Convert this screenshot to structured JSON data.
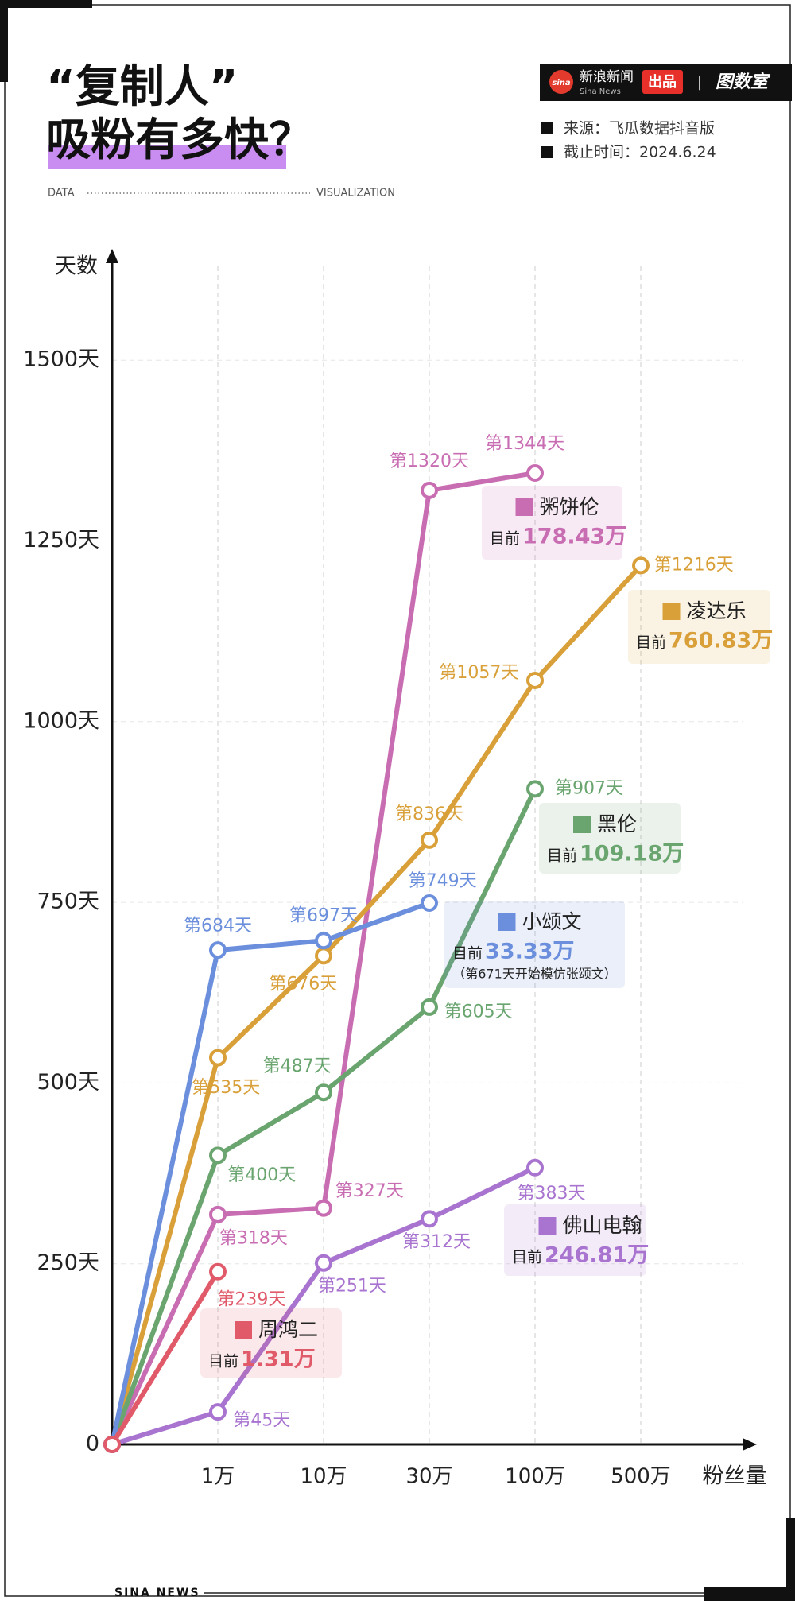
{
  "header": {
    "title_line1": "“复制人”",
    "title_line2": "吸粉有多快？",
    "tag_left": "DATA",
    "tag_right": "VISUALIZATION",
    "brand": "新浪新闻",
    "brand_en": "Sina News",
    "brand_logo": "sina",
    "produced": "出品",
    "separator": "|",
    "studio": "图数室",
    "source": "来源：飞瓜数据抖音版",
    "cutoff": "截止时间：2024.6.24"
  },
  "footer": {
    "text": "SINA NEWS"
  },
  "chart_data": {
    "type": "line",
    "y_label": "天数",
    "x_label": "粉丝量",
    "current_prefix": "目前",
    "categories": [
      null,
      "1万",
      "10万",
      "30万",
      "100万",
      "500万"
    ],
    "ylim": [
      0,
      1630
    ],
    "yticks": [
      0,
      {
        "value": 250,
        "label": "250天"
      },
      {
        "value": 500,
        "label": "500天"
      },
      {
        "value": 750,
        "label": "750天"
      },
      {
        "value": 1000,
        "label": "1000天"
      },
      {
        "value": 1250,
        "label": "1250天"
      },
      {
        "value": 1500,
        "label": "1500天"
      }
    ],
    "grid": true,
    "series": [
      {
        "name": "粥饼伦",
        "color": "#c96db3",
        "values": [
          0,
          318,
          327,
          1320,
          1344,
          null
        ],
        "value_labels": [
          null,
          "第318天",
          "第327天",
          "第1320天",
          "第1344天",
          null
        ],
        "current": "178.43万"
      },
      {
        "name": "凌达乐",
        "color": "#d9a03a",
        "values": [
          0,
          535,
          676,
          836,
          1057,
          1216
        ],
        "value_labels": [
          null,
          "第535天",
          "第676天",
          "第836天",
          "第1057天",
          "第1216天"
        ],
        "current": "760.83万"
      },
      {
        "name": "黑伦",
        "color": "#6aa56f",
        "values": [
          0,
          400,
          487,
          605,
          907,
          null
        ],
        "value_labels": [
          null,
          "第400天",
          "第487天",
          "第605天",
          "第907天",
          null
        ],
        "current": "109.18万"
      },
      {
        "name": "小颂文",
        "color": "#6b8fdc",
        "values": [
          0,
          684,
          697,
          749,
          null,
          null
        ],
        "value_labels": [
          null,
          "第684天",
          "第697天",
          "第749天",
          null,
          null
        ],
        "current": "33.33万",
        "note": "（第671天开始模仿张颂文）"
      },
      {
        "name": "佛山电翰",
        "color": "#a874d0",
        "values": [
          0,
          45,
          251,
          312,
          383,
          null
        ],
        "value_labels": [
          null,
          "第45天",
          "第251天",
          "第312天",
          "第383天",
          null
        ],
        "current": "246.81万"
      },
      {
        "name": "周鸿二",
        "color": "#e05a6a",
        "values": [
          0,
          239,
          null,
          null,
          null,
          null
        ],
        "value_labels": [
          null,
          "第239天",
          null,
          null,
          null,
          null
        ],
        "current": "1.31万"
      }
    ]
  }
}
